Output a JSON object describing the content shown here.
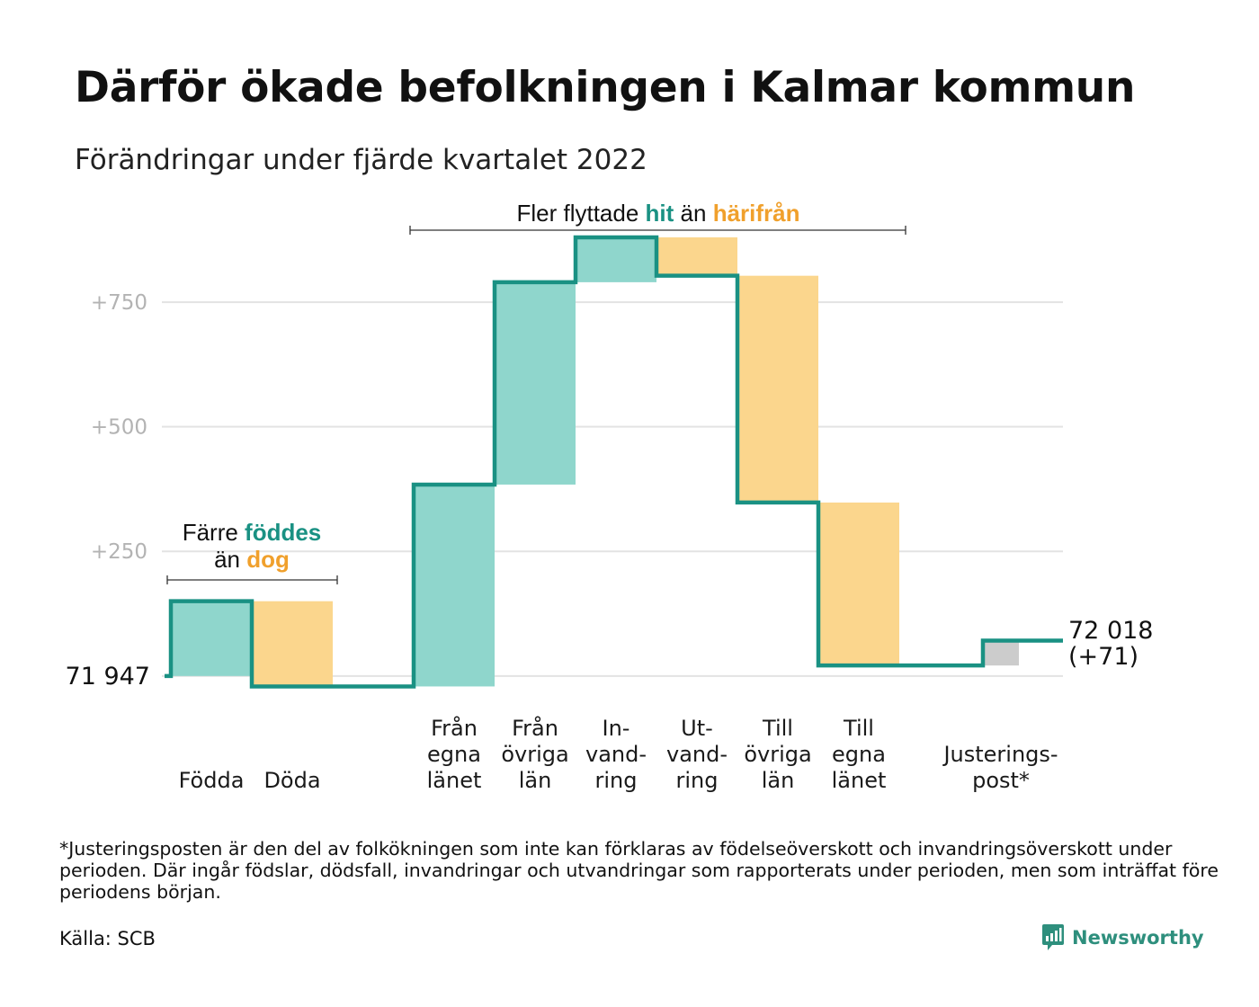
{
  "header": {
    "title": "Därför ökade befolkningen i Kalmar kommun",
    "subtitle": "Förändringar under fjärde kvartalet 2022"
  },
  "colors": {
    "positive": "#8fd6cc",
    "negative": "#fbd68d",
    "adjustment": "#cccccc",
    "step_line": "#1a9183",
    "accent_teal": "#1a9183",
    "accent_orange": "#f0a02c",
    "gridline": "#e3e3e3",
    "brand": "#2e8f7d"
  },
  "annotations": {
    "births": {
      "pre": "Färre ",
      "teal": "föddes",
      "line2_pre": "än ",
      "orange": "dog"
    },
    "migration": {
      "pre": "Fler flyttade ",
      "teal": "hit",
      "mid": " än ",
      "orange": "härifrån"
    }
  },
  "chart_data": {
    "type": "waterfall",
    "title": "Därför ökade befolkningen i Kalmar kommun",
    "subtitle": "Förändringar under fjärde kvartalet 2022",
    "base_value": 71947,
    "base_label": "71 947",
    "end_value": 72018,
    "end_label": "72 018",
    "end_change_label": "(+71)",
    "ylim": [
      -40,
      880
    ],
    "yticks": [
      {
        "value": 250,
        "label": "+250"
      },
      {
        "value": 500,
        "label": "+500"
      },
      {
        "value": 750,
        "label": "+750"
      }
    ],
    "grid": true,
    "categories": [
      {
        "label": [
          "Födda"
        ],
        "change": 150,
        "kind": "positive"
      },
      {
        "label": [
          "Döda"
        ],
        "change": -171,
        "kind": "negative"
      },
      {
        "label": [
          "Från",
          "egna",
          "länet"
        ],
        "change": 405,
        "kind": "positive"
      },
      {
        "label": [
          "Från",
          "övriga",
          "län"
        ],
        "change": 406,
        "kind": "positive"
      },
      {
        "label": [
          "In-",
          "vand-",
          "ring"
        ],
        "change": 90,
        "kind": "positive"
      },
      {
        "label": [
          "Ut-",
          "vand-",
          "ring"
        ],
        "change": -77,
        "kind": "negative"
      },
      {
        "label": [
          "Till",
          "övriga",
          "län"
        ],
        "change": -455,
        "kind": "negative"
      },
      {
        "label": [
          "Till",
          "egna",
          "länet"
        ],
        "change": -327,
        "kind": "negative"
      },
      {
        "label": [
          "Justerings-",
          "post*"
        ],
        "change": 50,
        "kind": "adjustment"
      }
    ]
  },
  "footnote": "*Justeringsposten är den del av folkökningen som inte kan förklaras av födelseöverskott och invandringsöverskott under perioden. Där ingår födslar, dödsfall, invandringar och utvandringar som rapporterats under perioden, men som inträffat före periodens början.",
  "source": "Källa: SCB",
  "brand": {
    "name": "Newsworthy",
    "icon": "bar-chart-speech-bubble-icon"
  }
}
